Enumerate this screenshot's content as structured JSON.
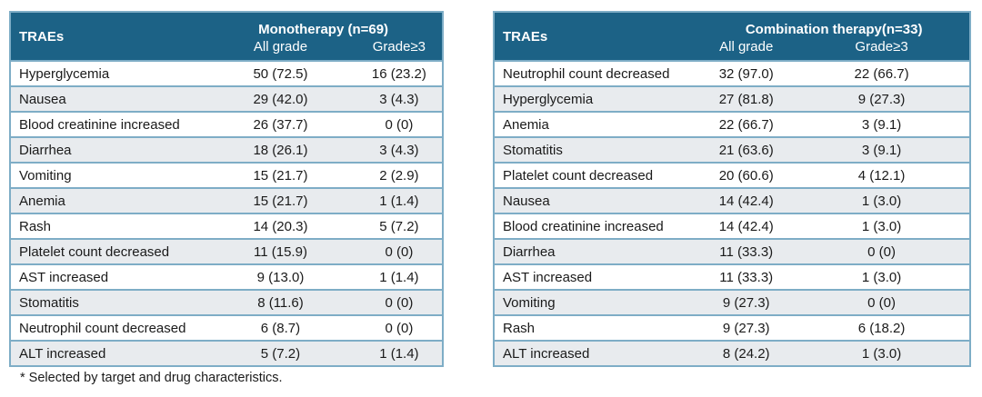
{
  "colors": {
    "header_bg": "#1c6286",
    "header_text": "#ffffff",
    "row_border": "#7eadc6",
    "row_stripe": "#e8ebee",
    "body_text": "#1a1a1a",
    "page_bg": "#ffffff"
  },
  "footnote": "* Selected by target and drug characteristics.",
  "chart_data": [
    {
      "type": "table",
      "title": "Monotherapy (n=69)",
      "row_header": "TRAEs",
      "columns": [
        "All grade",
        "Grade≥3"
      ],
      "rows": [
        [
          "Hyperglycemia",
          "50 (72.5)",
          "16 (23.2)"
        ],
        [
          "Nausea",
          "29 (42.0)",
          "3 (4.3)"
        ],
        [
          "Blood creatinine increased",
          "26 (37.7)",
          "0 (0)"
        ],
        [
          "Diarrhea",
          "18 (26.1)",
          "3 (4.3)"
        ],
        [
          "Vomiting",
          "15 (21.7)",
          "2 (2.9)"
        ],
        [
          "Anemia",
          "15 (21.7)",
          "1 (1.4)"
        ],
        [
          "Rash",
          "14 (20.3)",
          "5 (7.2)"
        ],
        [
          "Platelet count decreased",
          "11 (15.9)",
          "0 (0)"
        ],
        [
          "AST increased",
          "9 (13.0)",
          "1 (1.4)"
        ],
        [
          "Stomatitis",
          "8 (11.6)",
          "0 (0)"
        ],
        [
          "Neutrophil count decreased",
          "6 (8.7)",
          "0 (0)"
        ],
        [
          "ALT increased",
          "5 (7.2)",
          "1 (1.4)"
        ]
      ]
    },
    {
      "type": "table",
      "title": "Combination therapy(n=33)",
      "row_header": "TRAEs",
      "columns": [
        "All grade",
        "Grade≥3"
      ],
      "rows": [
        [
          "Neutrophil count decreased",
          "32 (97.0)",
          "22 (66.7)"
        ],
        [
          "Hyperglycemia",
          "27 (81.8)",
          "9 (27.3)"
        ],
        [
          "Anemia",
          "22 (66.7)",
          "3 (9.1)"
        ],
        [
          "Stomatitis",
          "21 (63.6)",
          "3 (9.1)"
        ],
        [
          "Platelet count decreased",
          "20 (60.6)",
          "4 (12.1)"
        ],
        [
          "Nausea",
          "14 (42.4)",
          "1 (3.0)"
        ],
        [
          "Blood creatinine increased",
          "14 (42.4)",
          "1 (3.0)"
        ],
        [
          "Diarrhea",
          "11 (33.3)",
          "0 (0)"
        ],
        [
          "AST increased",
          "11 (33.3)",
          "1 (3.0)"
        ],
        [
          "Vomiting",
          "9 (27.3)",
          "0 (0)"
        ],
        [
          "Rash",
          "9 (27.3)",
          "6 (18.2)"
        ],
        [
          "ALT increased",
          "8 (24.2)",
          "1 (3.0)"
        ]
      ]
    }
  ]
}
